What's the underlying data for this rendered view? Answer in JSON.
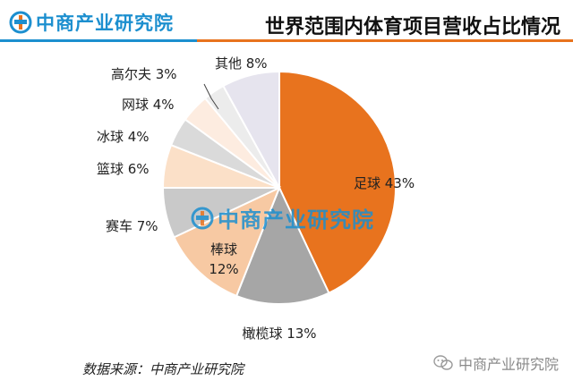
{
  "header": {
    "logo_text": "中商产业研究院",
    "title": "世界范围内体育项目营收占比情况"
  },
  "colors": {
    "brand_blue": "#1c8fcf",
    "brand_orange": "#e8731e"
  },
  "chart_data": {
    "type": "pie",
    "title": "世界范围内体育项目营收占比情况",
    "unit": "%",
    "slices": [
      {
        "label": "足球",
        "value": 43,
        "display": "足球 43%",
        "color": "#e8731e"
      },
      {
        "label": "橄榄球",
        "value": 13,
        "display": "橄榄球 13%",
        "color": "#a6a6a6"
      },
      {
        "label": "棒球",
        "value": 12,
        "display": "棒球 12%",
        "color": "#f7c9a3"
      },
      {
        "label": "赛车",
        "value": 7,
        "display": "赛车 7%",
        "color": "#c9c9c9"
      },
      {
        "label": "篮球",
        "value": 6,
        "display": "篮球 6%",
        "color": "#fbe0c8"
      },
      {
        "label": "冰球",
        "value": 4,
        "display": "冰球 4%",
        "color": "#dadada"
      },
      {
        "label": "网球",
        "value": 4,
        "display": "网球 4%",
        "color": "#fdece0"
      },
      {
        "label": "高尔夫",
        "value": 3,
        "display": "高尔夫 3%",
        "color": "#ececec"
      },
      {
        "label": "其他",
        "value": 8,
        "display": "其他 8%",
        "color": "#e6e4ee"
      }
    ]
  },
  "watermark": {
    "text": "中商产业研究院"
  },
  "footer": {
    "source": "数据来源：中商产业研究院",
    "wechat_text": "中商产业研究院"
  }
}
